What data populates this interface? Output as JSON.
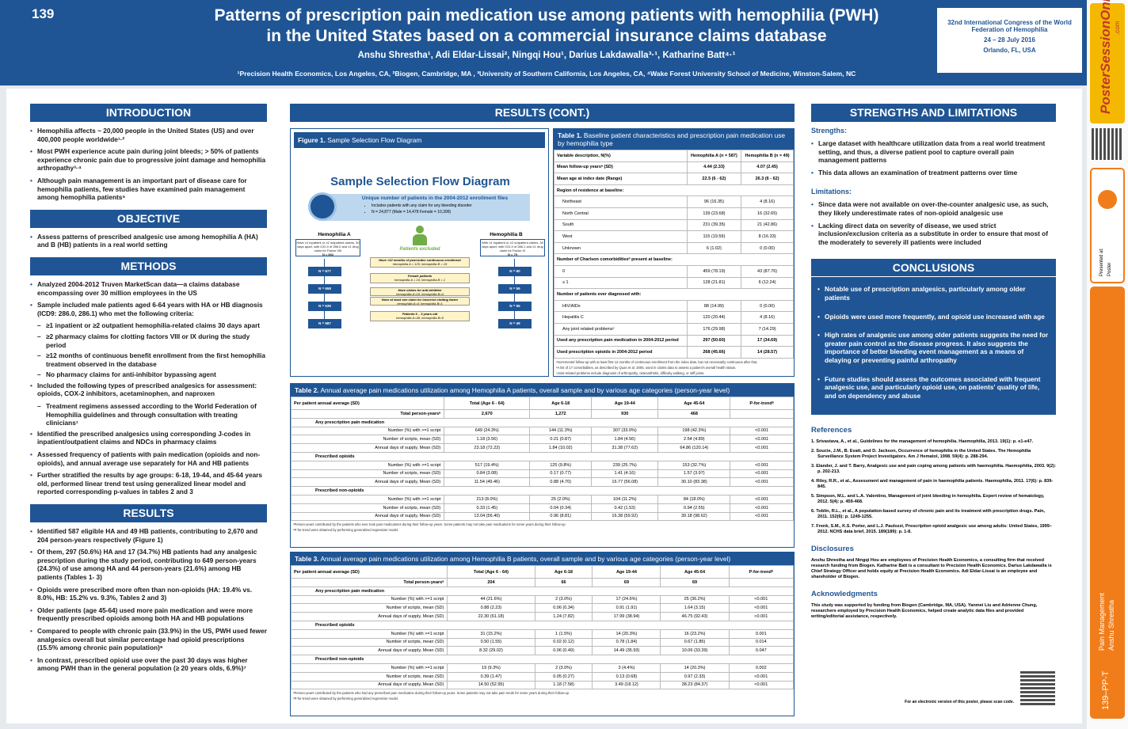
{
  "header": {
    "number": "139",
    "title_line1": "Patterns of prescription pain medication use among patients with hemophilia (PWH)",
    "title_line2": "in the United States based on a commercial insurance claims database",
    "authors": "Anshu Shrestha¹, Adi Eldar-Lissai², Ningqi Hou¹, Darius Lakdawalla³·¹, Katharine Batt⁴·¹",
    "affiliations": "¹Precision Health Economics, Los Angeles, CA, ²Biogen, Cambridge, MA , ³University of Southern California, Los Angeles, CA, ⁴Wake Forest University School of Medicine, Winston-Salem, NC",
    "congress": [
      "32nd International Congress of the World Federation of Hemophilia",
      "24 – 28 July 2016",
      "Orlando, FL, USA"
    ]
  },
  "sidebar": {
    "brand": "PosterSessionOnline",
    "brand_suffix": ".com",
    "presented": "Presented at:",
    "kind": "Poster",
    "topic": "Pain Management",
    "author": "Anshu Shrestha",
    "code": "139–PP-T"
  },
  "introduction": {
    "heading": "INTRODUCTION",
    "bullets": [
      "Hemophilia affects ~ 20,000 people in the United States (US) and over 400,000 people worldwide¹·²",
      "Most PWH experience acute pain during joint bleeds; > 50% of patients experience chronic pain due to progressive joint damage and hemophilia arthropathy³·⁴",
      "Although pain management is an important part of disease care for hemophilia patients, few studies have examined pain management among hemophilia patients⁵"
    ]
  },
  "objective": {
    "heading": "OBJECTIVE",
    "bullets": [
      "Assess patterns of prescribed analgesic use among hemophilia A (HA) and B (HB) patients in a real world setting"
    ]
  },
  "methods": {
    "heading": "METHODS",
    "bullets": [
      "Analyzed 2004-2012 Truven MarketScan data—a claims database encompassing over 30 million employees in the US",
      {
        "text": "Sample included male patients aged 6-64 years with HA or HB diagnosis (ICD9: 286.0, 286.1) who met the following criteria:",
        "sub": [
          "≥1 inpatient or ≥2 outpatient hemophilia-related claims 30 days apart",
          "≥2 pharmacy claims for clotting factors VIII or IX during the study period",
          "≥12 months of continuous benefit enrollment from the first hemophilia treatment observed in the database",
          "No pharmacy claims for anti-inhibitor bypassing agent"
        ]
      },
      {
        "text": "Included the following types of prescribed analgesics for assessment: opioids, COX-2 inhibitors, acetaminophen, and naproxen",
        "sub": [
          "Treatment regimens assessed according to the World Federation of Hemophilia guidelines and through consultation with treating clinicians¹"
        ]
      },
      "Identified the prescribed analgesics using corresponding J-codes in inpatient/outpatient claims and NDCs in pharmacy claims",
      "Assessed frequency of patients with pain medication (opioids and non-opioids), and annual average use separately for HA and HB patients",
      "Further stratified the results by age groups: 6-18, 19-44, and 45-64 years old, performed linear trend test using generalized linear model and reported corresponding p-values in tables 2 and 3"
    ]
  },
  "results": {
    "heading": "RESULTS",
    "bullets": [
      "Identified 587 eligible HA and 49 HB patients, contributing to 2,670 and 204 person-years respectively (Figure 1)",
      "Of them, 297 (50.6%) HA and 17 (34.7%) HB patients had any analgesic prescription during the study period, contributing to 649 person-years (24.3%) of use among HA and 44 person-years (21.6%) among HB patients (Tables 1- 3)",
      "Opioids were prescribed more often than non-opioids (HA: 19.4% vs. 8.0%, HB: 15.2% vs. 9.3%, Tables 2 and 3)",
      "Older patients (age 45-64) used more pain medication and were more frequently prescribed opioids among both HA and HB populations",
      "Compared to people with chronic pain (33.9%) in the US, PWH used fewer analgesics overall but similar percentage had opioid prescriptions (15.5% among chronic pain population)⁶",
      "In contrast, prescribed opioid use over the past 30 days was higher among PWH than in the general population (≥ 20 years olds, 6.9%)⁷"
    ]
  },
  "results_cont": {
    "heading": "RESULTS (CONT.)"
  },
  "figure": {
    "label": "Figure 1.",
    "caption": "Sample Selection Flow Diagram",
    "title": "Sample Selection Flow Diagram",
    "enroll_title": "Unique number of patients in the 2004-2012 enrollment files",
    "enroll_bullets": [
      "Includes patients with any claim for any bleeding disorder",
      "N = 24,877 (Male = 14,478  Female = 10,399)"
    ],
    "group_a": "Hemophilia A",
    "group_b": "Hemophilia B",
    "desc_a": "Have ≥1 inpatient or ≥2 outpatient claims, 30 days apart, with ICD-9 of 286.0 and ≥1 drug claim for Factor VIII",
    "n_a": "N = 802",
    "desc_b": "With ≥1 inpatient or ≥2 outpatient claims, 30 days apart, with ICD-9 of 286.1 and ≥1 drug claim for Factor IX",
    "n_b": "N = 79",
    "excluded": "Patients excluded",
    "exclusions": [
      {
        "title": "Have <12 months of post-index continuous enrollment",
        "detail": "hemophilia A = 125, hemophilia B = 19"
      },
      {
        "title": "Female patients",
        "detail": "hemophilia A = 19, hemophilia B = 1"
      },
      {
        "title": "Have claims for anti-inhibitor",
        "detail": "hemophilia A=19, hemophilia B=4"
      },
      {
        "title": "Have at least one claim for incorrect clotting factor",
        "detail": "hemophilia A=4; hemophilia B=1"
      },
      {
        "title": "Patients 6 – 3 years old",
        "detail": "hemophilia A=48, hemophilia B=5"
      }
    ],
    "funnel_a": [
      "N = 677",
      "N = 658",
      "N = 639",
      "N = 587"
    ],
    "funnel_b": [
      "N = 60",
      "N = 59",
      "N = 55",
      "N = 49"
    ]
  },
  "table1": {
    "label": "Table 1.",
    "caption": "Baseline patient characteristics and prescription pain medication use by hemophilia type",
    "header": [
      "Variable description, N(%)",
      "Hemophilia A (n = 587)",
      "Hemophilia B (n = 49)"
    ],
    "rows": [
      [
        "Mean follow-up yearsᵃ (SD)",
        "4.44 (2.33)",
        "4.07 (2.45)"
      ],
      [
        "Mean age at index date (Range)",
        "22.5 (6 - 62)",
        "26.3 (6 - 62)"
      ],
      [
        "Region of residence at baseline:"
      ],
      [
        "Northeast",
        "96 (16.35)",
        "4 (8.16)"
      ],
      [
        "North Central",
        "139 (23.68)",
        "16 (32.65)"
      ],
      [
        "South",
        "231 (39.35)",
        "21 (42.86)"
      ],
      [
        "West",
        "115 (19.59)",
        "8 (16.33)"
      ],
      [
        "Unknown",
        "6 (1.02)",
        "0 (0.00)"
      ],
      [
        "Number of Charlson comorbiditiesᵇ present at baseline:"
      ],
      [
        "0",
        "459 (78.19)",
        "43 (87.76)"
      ],
      [
        "≥ 1",
        "128 (21.81)",
        "6 (12.24)"
      ],
      [
        "Number of patients ever diagnosed with:"
      ],
      [
        "HIV/AIDs",
        "88 (14.99)",
        "0 (0.00)"
      ],
      [
        "Hepatitis C",
        "120 (20.44)",
        "4 (8.16)"
      ],
      [
        "Any joint related problemsᶜ",
        "176 (29.98)",
        "7 (14.29)"
      ],
      [
        "Used any prescription pain medication in 2004-2012 period",
        "297 (50.60)",
        "17 (34.69)"
      ],
      [
        "Used prescription opioids in 2004-2012 period",
        "268 (45.66)",
        "14 (28.57)"
      ]
    ],
    "notes": [
      "ᵃIncremental follow-up with at least first 12 months of continuous enrollment from the index date, but not necessarily continuous after that.",
      "ᵇA list of 17 comorbidities, as described by Quan et al. 2005, used in claims data to assess a patient's overall health status.",
      "ᶜJoint-related problems include diagnosis of arthropathy, osteoarthritis, difficulty walking, or stiff joints."
    ]
  },
  "table2": {
    "label": "Table 2.",
    "caption": "Annual average pain medications utilization among Hemophilia A patients, overall sample and by various age categories (person-year level)",
    "header": [
      "Per patient annual average (SD)",
      "Total (Age 6 - 64)",
      "Age 6-18",
      "Age 19-44",
      "Age 45-64",
      "P-for-trendᵇ"
    ],
    "rows": [
      [
        "Total person-yearsᵃ",
        "2,670",
        "1,272",
        "930",
        "468"
      ],
      [
        "Any prescription pain medication"
      ],
      [
        "Number (%) with >=1 script",
        "649 (24.3%)",
        "144 (11.3%)",
        "307 (33.0%)",
        "198 (42.3%)",
        "<0.001"
      ],
      [
        "Number of scripts, mean (SD)",
        "1.18 (3.56)",
        "0.21 (0.87)",
        "1.84 (4.56)",
        "2.54 (4.89)",
        "<0.001"
      ],
      [
        "Annual days of supply, Mean (SD)",
        "23.18 (72.22)",
        "1.84 (10.02)",
        "31.38 (77.62)",
        "64.86 (120.14)",
        "<0.001"
      ],
      [
        "Prescribed opioids"
      ],
      [
        "Number (%) with >=1 script",
        "517 (19.4%)",
        "125 (9.8%)",
        "239 (25.7%)",
        "153 (32.7%)",
        "<0.001"
      ],
      [
        "Number of scripts, mean (SD)",
        "0.84 (3.08)",
        "0.17 (0.77)",
        "1.41 (4.16)",
        "1.57 (3.97)",
        "<0.001"
      ],
      [
        "Annual days of supply, Mean (SD)",
        "11.54 (49.46)",
        "0.88 (4.70)",
        "16.77 (56.08)",
        "30.10 (83.38)",
        "<0.001"
      ],
      [
        "Prescribed non-opioids"
      ],
      [
        "Number (%) with >=1 script",
        "213 (8.0%)",
        "25 (2.0%)",
        "104 (11.2%)",
        "84 (18.0%)",
        "<0.001"
      ],
      [
        "Number of scripts, mean (SD)",
        "0.33 (1.45)",
        "0.04 (0.34)",
        "0.42 (1.53)",
        "0.94 (2.55)",
        "<0.001"
      ],
      [
        "Annual days of supply, Mean (SD)",
        "13.04 (56.40)",
        "0.96 (8.81)",
        "16.38 (59.92)",
        "39.18 (98.62)",
        "<0.001"
      ]
    ],
    "notes": [
      "ᵃPerson-years contributed by the patients who ever took pain medications during their follow-up years. Some patients may not take pain medications for some years during their follow-up",
      "ᵇP-for-trend were obtained by performing generalized regression model."
    ]
  },
  "table3": {
    "label": "Table 3.",
    "caption": "Annual average pain medications utilization among Hemophilia B patients, overall sample and by various age categories (person-year level)",
    "header": [
      "Per patient annual average (SD)",
      "Total (Age 6 - 64)",
      "Age 6-18",
      "Age 19-44",
      "Age 45-64",
      "P-for-trendᵇ"
    ],
    "rows": [
      [
        "Total person-yearsᵃ",
        "204",
        "66",
        "69",
        "69"
      ],
      [
        "Any prescription pain medication"
      ],
      [
        "Number (%) with >=1 script",
        "44 (21.6%)",
        "2 (3.0%)",
        "17 (24.6%)",
        "25 (36.2%)",
        "<0.001"
      ],
      [
        "Number of scripts, mean (SD)",
        "0.88 (2.23)",
        "0.06 (0.34)",
        "0.91 (1.91)",
        "1.64 (3.15)",
        "<0.001"
      ],
      [
        "Annual days of supply, Mean (SD)",
        "22.30 (61.18)",
        "1.24 (7.82)",
        "17.99 (38.94)",
        "46.75 (92.43)",
        "<0.001"
      ],
      [
        "Prescribed opioids"
      ],
      [
        "Number (%) with >=1 script",
        "31 (15.2%)",
        "1 (1.5%)",
        "14 (20.3%)",
        "16 (23.2%)",
        "0.001"
      ],
      [
        "Number of scripts, mean (SD)",
        "0.50 (1.55)",
        "0.02 (0.12)",
        "0.78 (1.84)",
        "0.67 (1.85)",
        "0.014"
      ],
      [
        "Annual days of supply, Mean (SD)",
        "8.32 (29.02)",
        "0.06 (0.49)",
        "14.49 (35.93)",
        "10.06 (33.39)",
        "0.047"
      ],
      [
        "Prescribed non-opioids"
      ],
      [
        "Number (%) with >=1 script",
        "19 (9.3%)",
        "2 (3.0%)",
        "3 (4.4%)",
        "14 (20.3%)",
        "0.002"
      ],
      [
        "Number of scripts, mean (SD)",
        "0.39 (1.47)",
        "0.05 (0.27)",
        "0.13 (0.68)",
        "0.97 (2.33)",
        "<0.001"
      ],
      [
        "Annual days of supply, Mean (SD)",
        "14.50 (52.95)",
        "1.18 (7.58)",
        "3.49 (18.12)",
        "38.23 (84.37)",
        "<0.001"
      ]
    ],
    "notes": [
      "ᵃPerson-years contributed by the patients who had any prescribed pain medication during their follow-up years. Some patients may not take pain meds for some years during their follow-up.",
      "ᵇP-for-trend were obtained by performing generalized regression model."
    ]
  },
  "strengths": {
    "heading": "STRENGTHS AND LIMITATIONS",
    "groups": [
      {
        "label": "Strengths:",
        "bullets": [
          "Large dataset with healthcare utilization data from a real world treatment setting, and thus, a diverse patient pool to capture overall pain management patterns",
          "This data allows an examination of treatment patterns over time"
        ]
      },
      {
        "label": "Limitations:",
        "bullets": [
          "Since data were not available on over-the-counter analgesic use, as such, they likely underestimate rates of non-opioid analgesic use",
          "Lacking direct data on severity of disease, we used strict inclusion/exclusion criteria as a substitute in order to ensure that most of the moderately to severely ill patients were included"
        ]
      }
    ]
  },
  "conclusions": {
    "heading": "CONCLUSIONS",
    "bullets": [
      "Notable use of prescription analgesics, particularly among older patients",
      "Opioids were used more frequently, and opioid use increased with age",
      "High rates of analgesic use among older patients suggests the need for greater pain control as the disease progress. It also suggests the importance of better bleeding event management as a means of delaying or preventing painful arthropathy",
      "Future studies should assess the outcomes associated with frequent analgesic use, and particularly opioid use, on patients' quality of life, and on dependency and abuse"
    ]
  },
  "references": {
    "heading": "References",
    "items": [
      "1. Srivastava, A., et al., Guidelines for the management of hemophilia. Haemophilia, 2013. 19(1): p. e1-e47.",
      "2. Soucie, J.M., B. Evatt, and D. Jackson, Occurrence of hemophilia in the United States. The Hemophilia Surveillance System Project Investigators. Am J Hematol, 1998. 59(4): p. 288-294.",
      "3. Elander, J. and T. Barry, Analgesic use and pain coping among patients with haemophilia. Haemophilia, 2003. 9(2): p. 202-213.",
      "4. Riley, R.R., et al., Assessment and management of pain in haemophilia patients. Haemophilia, 2011. 17(6): p. 839-845.",
      "5. Simpson, M.L. and L.A. Valentino, Management of joint bleeding in hemophilia. Expert review of hematology, 2012. 5(4): p. 459-468.",
      "6. Toblin, R.L., et al., A population-based survey of chronic pain and its treatment with prescription drugs. Pain, 2011. 152(6): p. 1249-1255.",
      "7. Frenk, S.M., K.S. Porter, and L.J. Paulozzi, Prescription opioid analgesic use among adults: United States, 1999–2012. NCHS data brief, 2015. 189(189): p. 1-8."
    ]
  },
  "disclosures": {
    "heading": "Disclosures",
    "text": "Anshu Shrestha and Ningqi Hou are employees of Precision Health Economics, a consulting firm that received research funding from Biogen. Katharine Batt is a consultant to Precision Health Economics. Darius Lakdawalla is Chief Strategy Officer and holds equity at Precision Health Economics. Adi Eldar-Lissai is an employee and shareholder of Biogen."
  },
  "acknowledgments": {
    "heading": "Acknowledgments",
    "text": "This study was supported by funding from Biogen (Cambridge, MA, USA). Yanmei Liu and Adrienne Chung, researchers employed by Precision Health Economics, helped create analytic data files and provided writing/editorial assistance, respectively."
  },
  "electronic_note": "For an electronic version of this poster, please scan code."
}
